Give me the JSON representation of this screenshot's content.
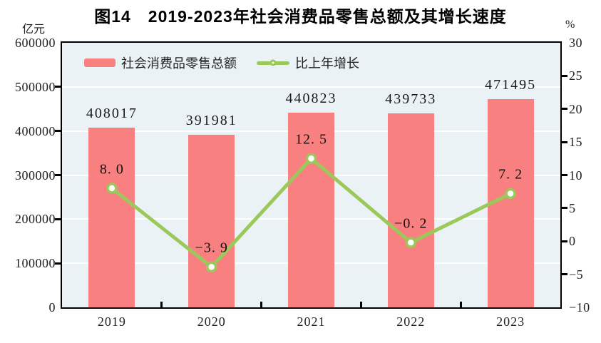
{
  "title": "图14　2019-2023年社会消费品零售总额及其增长速度",
  "left_axis_unit": "亿元",
  "right_axis_unit": "%",
  "legend": [
    {
      "label": "社会消费品零售总额",
      "type": "bar"
    },
    {
      "label": "比上年增长",
      "type": "line"
    }
  ],
  "colors": {
    "bar": "#f98080",
    "line": "#9bc85a",
    "plot_bg": "#ebf2f6",
    "grid": "#ffffff",
    "axis": "#000000",
    "marker_fill": "#ffffff"
  },
  "chart_data": {
    "type": "bar+line",
    "title": "图14　2019-2023年社会消费品零售总额及其增长速度",
    "categories": [
      "2019",
      "2020",
      "2021",
      "2022",
      "2023"
    ],
    "series": [
      {
        "name": "社会消费品零售总额",
        "type": "bar",
        "axis": "left",
        "values": [
          408017,
          391981,
          440823,
          439733,
          471495
        ],
        "labels": [
          "408017",
          "391981",
          "440823",
          "439733",
          "471495"
        ]
      },
      {
        "name": "比上年增长",
        "type": "line",
        "axis": "right",
        "values": [
          8.0,
          -3.9,
          12.5,
          -0.2,
          7.2
        ],
        "labels": [
          "8. 0",
          "−3. 9",
          "12. 5",
          "−0. 2",
          "7. 2"
        ]
      }
    ],
    "left_axis": {
      "unit": "亿元",
      "min": 0,
      "max": 600000,
      "tick_values": [
        0,
        100000,
        200000,
        300000,
        400000,
        500000,
        600000
      ],
      "tick_labels": [
        "0",
        "100000",
        "200000",
        "300000",
        "400000",
        "500000",
        "600000"
      ]
    },
    "right_axis": {
      "unit": "%",
      "min": -10,
      "max": 30,
      "tick_values": [
        -10,
        -5,
        0,
        5,
        10,
        15,
        20,
        25,
        30
      ],
      "tick_labels": [
        "−10",
        "−5",
        "0",
        "5",
        "10",
        "15",
        "20",
        "25",
        "30"
      ]
    },
    "grid": "horizontal-white",
    "legend_position": "top-left-inside"
  }
}
